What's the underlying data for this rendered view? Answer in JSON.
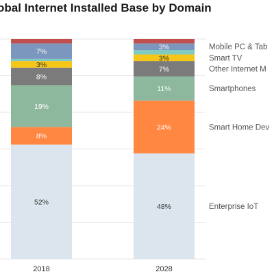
{
  "chart_data": {
    "type": "bar",
    "stacked": true,
    "title": "obal Internet Installed Base by Domain",
    "categories": [
      "2018",
      "2028"
    ],
    "series": [
      {
        "name": "Enterprise IoT",
        "values": [
          52,
          48
        ],
        "labels": [
          "52%",
          "48%"
        ],
        "color": "#dce5ee"
      },
      {
        "name": "Smart Home Dev",
        "values": [
          8,
          24
        ],
        "labels": [
          "8%",
          "24%"
        ],
        "color": "#ff8741"
      },
      {
        "name": "Smartphones",
        "values": [
          19,
          11
        ],
        "labels": [
          "19%",
          "11%"
        ],
        "color": "#8eb89e"
      },
      {
        "name": "Other Internet M",
        "values": [
          8,
          7
        ],
        "labels": [
          "8%",
          "7%"
        ],
        "color": "#7b7b7b"
      },
      {
        "name": "Smart TV",
        "values": [
          3,
          3
        ],
        "labels": [
          "3%",
          "3%"
        ],
        "color": "#f5c518"
      },
      {
        "name": "",
        "values": [
          1,
          2
        ],
        "labels": [
          "",
          ""
        ],
        "color": "#7ecbc1"
      },
      {
        "name": "Mobile PC & Tab",
        "values": [
          7,
          3
        ],
        "labels": [
          "7%",
          "3%"
        ],
        "color": "#7b97bd"
      },
      {
        "name": "",
        "values": [
          2,
          2
        ],
        "labels": [
          "",
          ""
        ],
        "color": "#c0504d"
      }
    ],
    "ylim": [
      0,
      100
    ],
    "grid": true,
    "legend": "right"
  }
}
